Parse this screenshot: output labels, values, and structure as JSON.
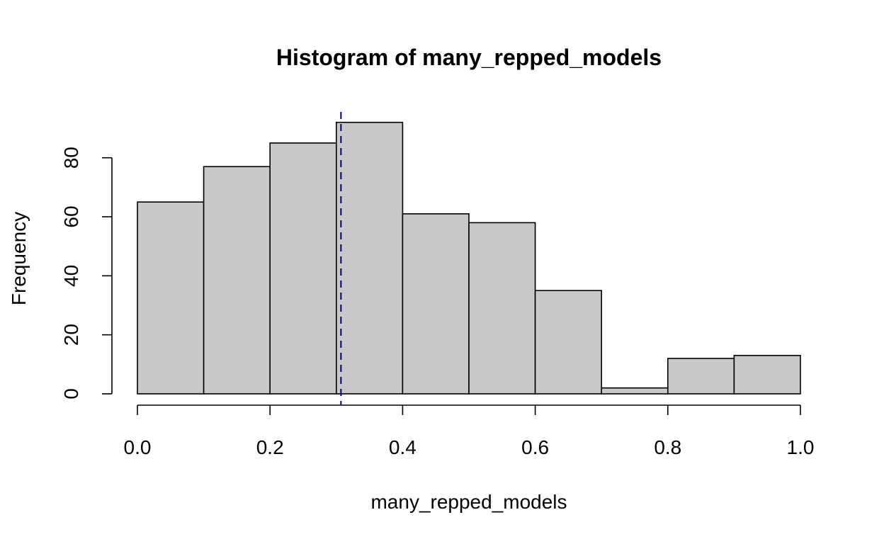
{
  "chart_data": {
    "type": "bar",
    "title": "Histogram of many_repped_models",
    "xlabel": "many_repped_models",
    "ylabel": "Frequency",
    "bins": [
      {
        "start": 0.0,
        "end": 0.1,
        "count": 65
      },
      {
        "start": 0.1,
        "end": 0.2,
        "count": 77
      },
      {
        "start": 0.2,
        "end": 0.3,
        "count": 85
      },
      {
        "start": 0.3,
        "end": 0.4,
        "count": 92
      },
      {
        "start": 0.4,
        "end": 0.5,
        "count": 61
      },
      {
        "start": 0.5,
        "end": 0.6,
        "count": 58
      },
      {
        "start": 0.6,
        "end": 0.7,
        "count": 35
      },
      {
        "start": 0.7,
        "end": 0.8,
        "count": 2
      },
      {
        "start": 0.8,
        "end": 0.9,
        "count": 12
      },
      {
        "start": 0.9,
        "end": 1.0,
        "count": 13
      }
    ],
    "xlim": [
      0.0,
      1.0
    ],
    "ylim": [
      0,
      92
    ],
    "x_ticks": [
      0.0,
      0.2,
      0.4,
      0.6,
      0.8,
      1.0
    ],
    "x_tick_labels": [
      "0.0",
      "0.2",
      "0.4",
      "0.6",
      "0.8",
      "1.0"
    ],
    "y_ticks": [
      0,
      20,
      40,
      60,
      80
    ],
    "y_tick_labels": [
      "0",
      "20",
      "40",
      "60",
      "80"
    ],
    "reference_line": {
      "x": 0.307,
      "style": "dashed",
      "color": "#00007f"
    },
    "bar_fill": "#c8c8c8",
    "bar_stroke": "#000000",
    "grid": false,
    "legend": "none"
  }
}
